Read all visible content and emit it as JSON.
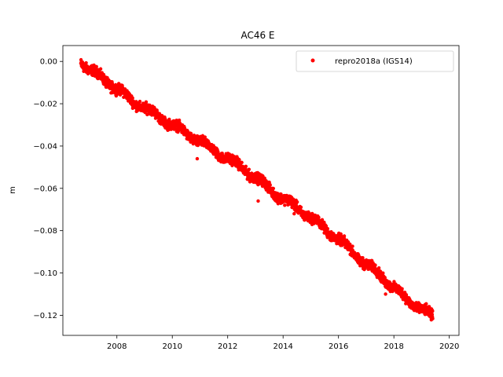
{
  "chart_data": {
    "type": "scatter",
    "title": "AC46 E",
    "xlabel": "",
    "ylabel": "m",
    "xlim": [
      2006.05,
      2020.35
    ],
    "ylim": [
      -0.1295,
      0.0075
    ],
    "x_ticks": [
      2008,
      2010,
      2012,
      2014,
      2016,
      2018,
      2020
    ],
    "y_ticks": [
      0.0,
      -0.02,
      -0.04,
      -0.06,
      -0.08,
      -0.1,
      -0.12
    ],
    "y_tick_labels": [
      "0.00",
      "−0.02",
      "−0.04",
      "−0.06",
      "−0.08",
      "−0.10",
      "−0.12"
    ],
    "grid": false,
    "legend_position": "top-right",
    "series": [
      {
        "name": "repro2018a (IGS14)",
        "color": "#ff0000",
        "marker": "circle",
        "x_range": [
          2006.7,
          2019.4
        ],
        "trend_points": [
          {
            "x": 2006.7,
            "y": 0.0
          },
          {
            "x": 2007.0,
            "y": -0.004
          },
          {
            "x": 2007.5,
            "y": -0.008
          },
          {
            "x": 2008.0,
            "y": -0.013
          },
          {
            "x": 2008.5,
            "y": -0.018
          },
          {
            "x": 2009.0,
            "y": -0.022
          },
          {
            "x": 2009.5,
            "y": -0.026
          },
          {
            "x": 2010.0,
            "y": -0.03
          },
          {
            "x": 2010.5,
            "y": -0.034
          },
          {
            "x": 2011.0,
            "y": -0.038
          },
          {
            "x": 2011.5,
            "y": -0.042
          },
          {
            "x": 2012.0,
            "y": -0.046
          },
          {
            "x": 2012.5,
            "y": -0.05
          },
          {
            "x": 2013.0,
            "y": -0.055
          },
          {
            "x": 2013.5,
            "y": -0.06
          },
          {
            "x": 2014.0,
            "y": -0.065
          },
          {
            "x": 2014.5,
            "y": -0.069
          },
          {
            "x": 2015.0,
            "y": -0.074
          },
          {
            "x": 2015.5,
            "y": -0.079
          },
          {
            "x": 2016.0,
            "y": -0.084
          },
          {
            "x": 2016.5,
            "y": -0.09
          },
          {
            "x": 2017.0,
            "y": -0.096
          },
          {
            "x": 2017.5,
            "y": -0.101
          },
          {
            "x": 2018.0,
            "y": -0.107
          },
          {
            "x": 2018.5,
            "y": -0.113
          },
          {
            "x": 2019.0,
            "y": -0.117
          },
          {
            "x": 2019.4,
            "y": -0.121
          }
        ],
        "scatter_spread": 0.0018,
        "outliers": [
          {
            "x": 2010.9,
            "y": -0.046
          },
          {
            "x": 2013.1,
            "y": -0.066
          },
          {
            "x": 2017.7,
            "y": -0.11
          },
          {
            "x": 2014.4,
            "y": -0.072
          }
        ]
      }
    ]
  }
}
